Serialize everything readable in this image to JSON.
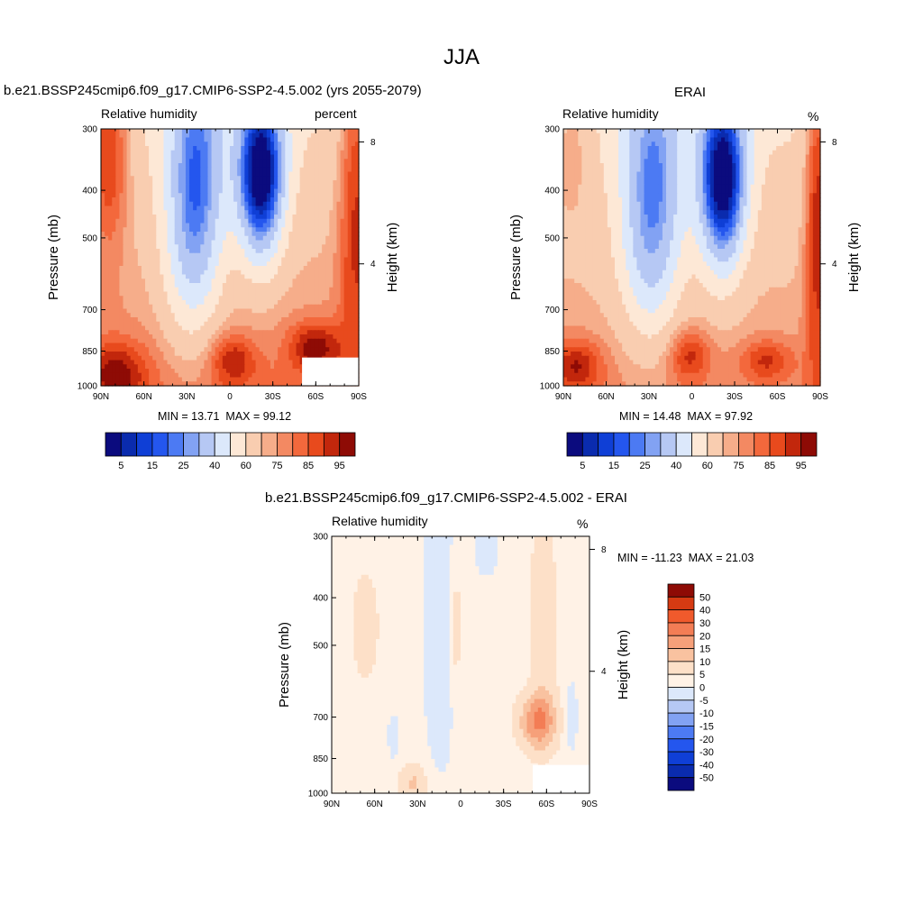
{
  "figure": {
    "title": "JJA"
  },
  "chart_data": [
    {
      "id": "model",
      "type": "heatmap",
      "title": "b.e21.BSSP245cmip6.f09_g17.CMIP6-SSP2-4.5.002 (yrs 2055-2079)",
      "variable": "Relative humidity",
      "units": "percent",
      "ylabel": "Pressure (mb)",
      "y2label": "Height (km)",
      "ytick_labels": [
        "300",
        "400",
        "500",
        "700",
        "850",
        "1000"
      ],
      "y2tick_labels": [
        "8",
        "4"
      ],
      "xtick_labels": [
        "90N",
        "60N",
        "30N",
        "0",
        "30S",
        "60S",
        "90S"
      ],
      "stats": {
        "min_label": "MIN =",
        "min": "13.71",
        "max_label": "MAX =",
        "max": "99.12"
      },
      "colorbar_labels": [
        "5",
        "15",
        "25",
        "40",
        "60",
        "75",
        "85",
        "95"
      ]
    },
    {
      "id": "obs",
      "type": "heatmap",
      "title": "ERAI",
      "variable": "Relative humidity",
      "units": "%",
      "ylabel": "Pressure (mb)",
      "y2label": "Height (km)",
      "ytick_labels": [
        "300",
        "400",
        "500",
        "700",
        "850",
        "1000"
      ],
      "y2tick_labels": [
        "8",
        "4"
      ],
      "xtick_labels": [
        "90N",
        "60N",
        "30N",
        "0",
        "30S",
        "60S",
        "90S"
      ],
      "stats": {
        "min_label": "MIN =",
        "min": "14.48",
        "max_label": "MAX =",
        "max": "97.92"
      },
      "colorbar_labels": [
        "5",
        "15",
        "25",
        "40",
        "60",
        "75",
        "85",
        "95"
      ]
    },
    {
      "id": "diff",
      "type": "heatmap",
      "title": "b.e21.BSSP245cmip6.f09_g17.CMIP6-SSP2-4.5.002 - ERAI",
      "variable": "Relative humidity",
      "units": "%",
      "ylabel": "Pressure (mb)",
      "y2label": "Height (km)",
      "ytick_labels": [
        "300",
        "400",
        "500",
        "700",
        "850",
        "1000"
      ],
      "y2tick_labels": [
        "8",
        "4"
      ],
      "xtick_labels": [
        "90N",
        "60N",
        "30N",
        "0",
        "30S",
        "60S",
        "90S"
      ],
      "stats": {
        "min_label": "MIN =",
        "min": "-11.23",
        "max_label": "MAX =",
        "max": "21.03"
      },
      "colorbar_labels": [
        "50",
        "40",
        "30",
        "20",
        "15",
        "10",
        "5",
        "0",
        "-5",
        "-10",
        "-15",
        "-20",
        "-30",
        "-40",
        "-50"
      ]
    }
  ],
  "colors": {
    "abs_palette": [
      "#0b0b7e",
      "#0a2bae",
      "#0f3fd6",
      "#2456ee",
      "#4c7af3",
      "#82a2f3",
      "#b6c8f4",
      "#dce8fb",
      "#fde8d6",
      "#f9cdb0",
      "#f6ad8a",
      "#f38962",
      "#f3683c",
      "#e84a1d",
      "#c2270c",
      "#8e0b05"
    ],
    "diff_palette": [
      "#0b0b7e",
      "#0a2bae",
      "#0f3fd6",
      "#2456ee",
      "#4c7af3",
      "#82a2f3",
      "#b6c8f4",
      "#dce8fb",
      "#fff2e6",
      "#fde0c8",
      "#f9c2a0",
      "#f6a07a",
      "#f37d55",
      "#f05a2c",
      "#d63a12",
      "#8e0b05"
    ]
  }
}
